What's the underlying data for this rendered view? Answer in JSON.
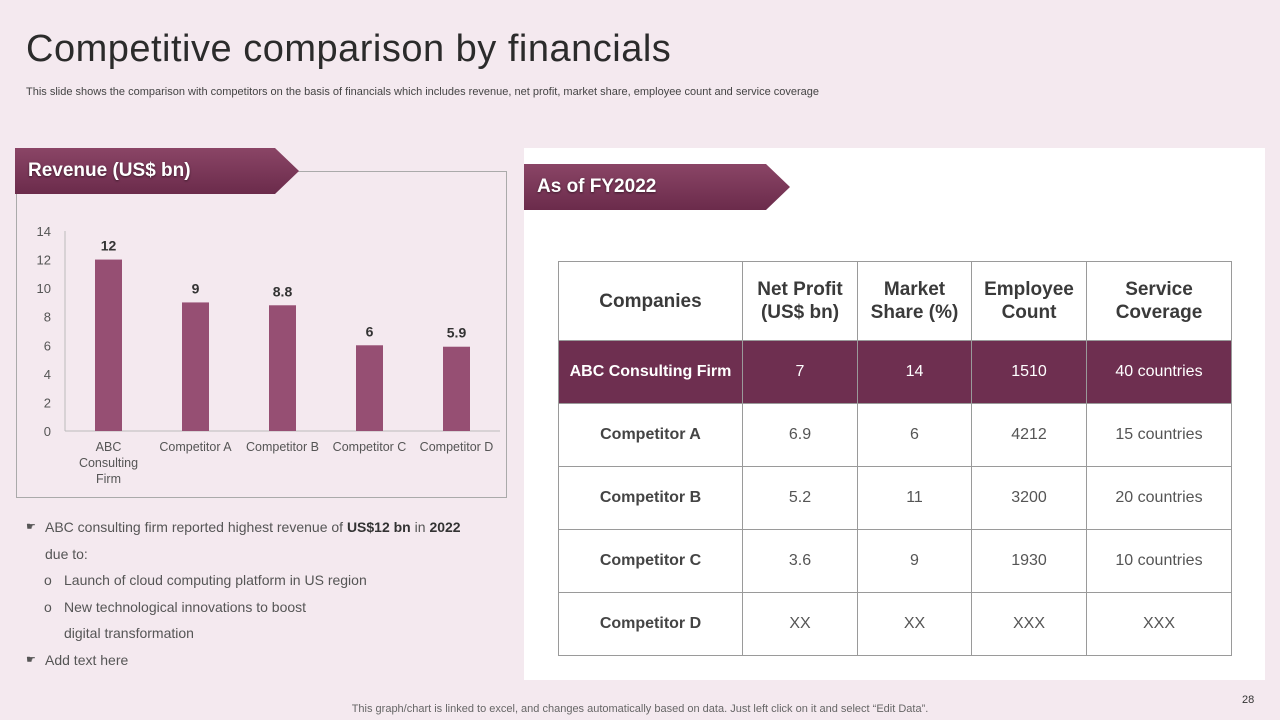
{
  "slide": {
    "title": "Competitive comparison by financials",
    "subtitle": "This slide shows the comparison with competitors on the basis of financials which includes revenue, net profit, market share, employee count and service coverage",
    "page_number": "28",
    "footer": "This graph/chart is linked to excel,  and changes automatically based on data. Just left click on it and select “Edit Data”."
  },
  "revenue_panel": {
    "banner": "Revenue (US$ bn)"
  },
  "chart_data": {
    "type": "bar",
    "categories": [
      [
        "ABC",
        "Consulting",
        "Firm"
      ],
      [
        "Competitor A"
      ],
      [
        "Competitor B"
      ],
      [
        "Competitor C"
      ],
      [
        "Competitor D"
      ]
    ],
    "values": [
      12,
      9,
      8.8,
      6,
      5.9
    ],
    "data_labels": [
      "12",
      "9",
      "8.8",
      "6",
      "5.9"
    ],
    "ylim": [
      0,
      14
    ],
    "yticks": [
      "0",
      "2",
      "4",
      "6",
      "8",
      "10",
      "12",
      "14"
    ],
    "bar_color": "#964f73",
    "grid": false,
    "legend": "none"
  },
  "notes": {
    "b1_pre": "ABC consulting firm reported highest revenue of ",
    "b1_bold1": "US$12 bn",
    "b1_mid": " in ",
    "b1_bold2": "2022",
    "b1_cont": "due to:",
    "sub1": "Launch of cloud computing platform in US region",
    "sub2_line1": "New technological innovations to boost",
    "sub2_line2": "digital transformation",
    "b2": "Add text here",
    "bullet_glyph": "☛",
    "sub_glyph": "o"
  },
  "table_panel": {
    "banner": "As of FY2022",
    "headers": [
      [
        "Companies"
      ],
      [
        "Net Profit",
        "(US$ bn)"
      ],
      [
        "Market",
        "Share (%)"
      ],
      [
        "Employee",
        "Count"
      ],
      [
        "Service",
        "Coverage"
      ]
    ],
    "rows": [
      [
        "ABC Consulting Firm",
        "7",
        "14",
        "1510",
        "40 countries"
      ],
      [
        "Competitor A",
        "6.9",
        "6",
        "4212",
        "15 countries"
      ],
      [
        "Competitor B",
        "5.2",
        "11",
        "3200",
        "20 countries"
      ],
      [
        "Competitor C",
        "3.6",
        "9",
        "1930",
        "10 countries"
      ],
      [
        "Competitor D",
        "XX",
        "XX",
        "XXX",
        "XXX"
      ]
    ],
    "highlight_color": "#6e2f50"
  }
}
